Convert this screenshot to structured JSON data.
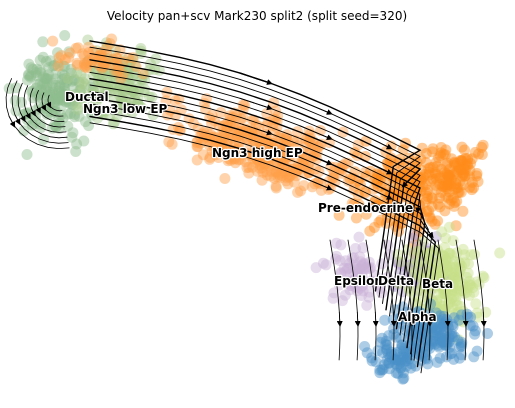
{
  "chart_data": {
    "type": "scatter",
    "title": "Velocity pan+scv Mark230 split2 (split seed=320)",
    "xlabel": "",
    "ylabel": "",
    "axes_visible": false,
    "grid": false,
    "legend": "on data",
    "overlay": "velocity streamlines with arrowheads",
    "clusters": [
      {
        "name": "Ductal",
        "color": "#8fbc8f",
        "label_pos": [
          0.085,
          0.805
        ]
      },
      {
        "name": "Ngn3 low EP",
        "color": "#a6c98b",
        "label_pos": [
          0.155,
          0.775
        ]
      },
      {
        "name": "Ngn3 high EP",
        "color": "#ff9f4a",
        "label_pos": [
          0.375,
          0.645
        ]
      },
      {
        "name": "Pre-endocrine",
        "color": "#ff8c1a",
        "label_pos": [
          0.645,
          0.485
        ]
      },
      {
        "name": "Epsilon",
        "color": "#c9b2d6",
        "label_pos": [
          0.62,
          0.28
        ]
      },
      {
        "name": "Delta",
        "color": "#b2a0cf",
        "label_pos": [
          0.755,
          0.28
        ]
      },
      {
        "name": "Beta",
        "color": "#c7e08a",
        "label_pos": [
          0.835,
          0.27
        ]
      },
      {
        "name": "Alpha",
        "color": "#4a90c8",
        "label_pos": [
          0.745,
          0.15
        ]
      }
    ]
  }
}
